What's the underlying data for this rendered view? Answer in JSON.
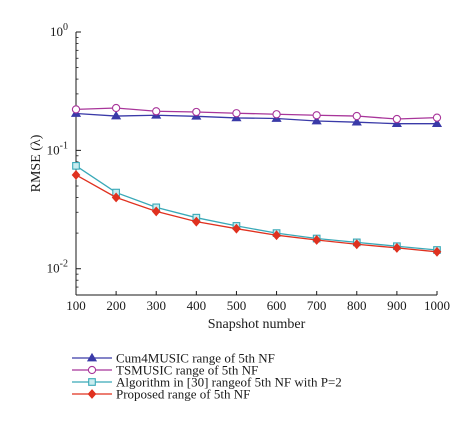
{
  "chart_data": {
    "type": "line",
    "xlabel": "Snapshot number",
    "ylabel": "RMSE (λ)",
    "yscale": "log",
    "xlim": [
      100,
      1000
    ],
    "ylim": [
      0.006,
      1
    ],
    "x": [
      100,
      200,
      300,
      400,
      500,
      600,
      700,
      800,
      900,
      1000
    ],
    "x_ticks": [
      "100",
      "200",
      "300",
      "400",
      "500",
      "600",
      "700",
      "800",
      "900",
      "1000"
    ],
    "y_ticks": [
      {
        "value": 1,
        "base": "10",
        "exp": "0"
      },
      {
        "value": 0.1,
        "base": "10",
        "exp": "-1"
      },
      {
        "value": 0.01,
        "base": "10",
        "exp": "-2"
      }
    ],
    "legend_position": "bottom",
    "series": [
      {
        "name": "Cum4MUSIC range of 5th NF",
        "color": "#3a3aa8",
        "marker": "triangle",
        "values": [
          0.205,
          0.195,
          0.198,
          0.194,
          0.188,
          0.186,
          0.177,
          0.173,
          0.168,
          0.168
        ]
      },
      {
        "name": "TSMUSIC range of 5th NF",
        "color": "#a8359a",
        "marker": "circle",
        "values": [
          0.222,
          0.228,
          0.214,
          0.211,
          0.206,
          0.202,
          0.198,
          0.195,
          0.184,
          0.189
        ]
      },
      {
        "name": "Algorithm in [30] rangeof 5th NF with P=2",
        "color": "#39a9b8",
        "marker": "square",
        "values": [
          0.074,
          0.044,
          0.033,
          0.027,
          0.023,
          0.02,
          0.018,
          0.0167,
          0.0155,
          0.0144
        ]
      },
      {
        "name": "Proposed range of 5th NF",
        "color": "#e0311f",
        "marker": "diamond",
        "values": [
          0.062,
          0.04,
          0.0305,
          0.025,
          0.0218,
          0.0192,
          0.0175,
          0.0161,
          0.015,
          0.0139
        ]
      }
    ]
  }
}
